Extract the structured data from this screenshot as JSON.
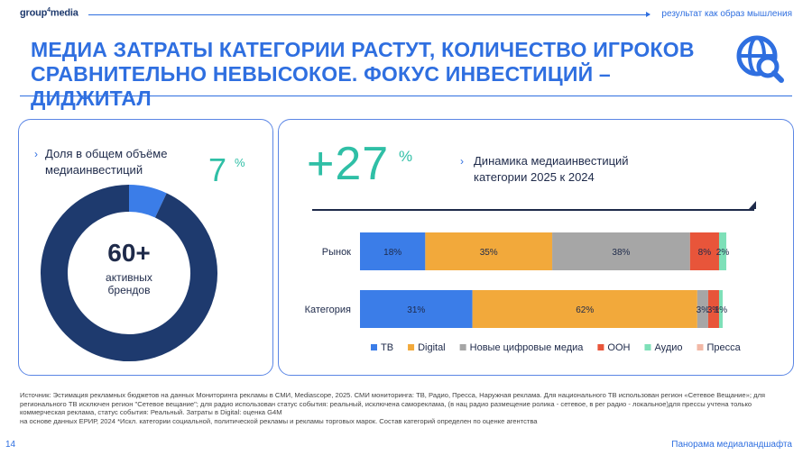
{
  "header": {
    "logo_main": "group",
    "logo_sup": "4",
    "logo_tail": "media",
    "tagline": "результат как образ мышления"
  },
  "title": "МЕДИА ЗАТРАТЫ КАТЕГОРИИ РАСТУТ, КОЛИЧЕСТВО ИГРОКОВ СРАВНИТЕЛЬНО НЕВЫСОКОЕ. ФОКУС ИНВЕСТИЦИЙ – ДИДЖИТАЛ",
  "title_icon": "globe-search-icon",
  "left_card": {
    "label": "Доля в общем объёме медиаинвестиций",
    "value": "7",
    "unit": "%",
    "center_number": "60+",
    "center_text_1": "активных",
    "center_text_2": "брендов"
  },
  "right_card": {
    "growth": "+27",
    "growth_unit": "%",
    "label_1": "Динамика медиаинвестиций",
    "label_2": "категории 2025 к 2024"
  },
  "colors": {
    "brand": "#2f6fe0",
    "navy": "#1e3a6e",
    "teal": "#2fbfa6",
    "tv": "#3b7de8",
    "digital": "#f2a93b",
    "new_digital": "#a6a6a6",
    "ooh": "#e8553a",
    "audio": "#7ee0b8",
    "press": "#f2b8a6"
  },
  "chart_data": [
    {
      "type": "pie",
      "labels": [
        "",
        ""
      ],
      "values": [
        7,
        93
      ],
      "colors": [
        "#3b7de8",
        "#1e3a6e"
      ]
    },
    {
      "type": "bar",
      "orientation": "horizontal",
      "stacked": true,
      "percent": true,
      "categories": [
        "Рынок",
        "Категория"
      ],
      "series": [
        {
          "name": "ТВ",
          "color": "#3b7de8",
          "values": [
            18,
            31
          ],
          "labels": [
            "18%",
            "31%"
          ]
        },
        {
          "name": "Digital",
          "color": "#f2a93b",
          "values": [
            35,
            62
          ],
          "labels": [
            "35%",
            "62%"
          ]
        },
        {
          "name": "Новые цифровые медиа",
          "color": "#a6a6a6",
          "values": [
            38,
            3
          ],
          "labels": [
            "38%",
            "3%"
          ]
        },
        {
          "name": "OOH",
          "color": "#e8553a",
          "values": [
            8,
            3
          ],
          "labels": [
            "8%",
            "3%"
          ]
        },
        {
          "name": "Аудио",
          "color": "#7ee0b8",
          "values": [
            2,
            1
          ],
          "labels": [
            "2%",
            "1%"
          ]
        },
        {
          "name": "Пресса",
          "color": "#f2b8a6",
          "values": [
            0,
            0
          ],
          "labels": [
            "",
            ""
          ]
        }
      ],
      "legend_position": "bottom"
    }
  ],
  "source": {
    "line1": "Источник: Эстимация рекламных бюджетов на данных Мониторинга рекламы в СМИ, Mediascope, 2025. СМИ мониторинга: ТВ, Радио, Пресса, Наружная реклама. Для национального ТВ использован регион «Сетевое Вещание»; для",
    "line2": "регионального ТВ исключен регион \"Сетевое вещание\"; для радио использован статус события: реальный, исключена самореклама, (в нац радио размещение ролика - сетевое, в рег радио - локальное)для прессы учтена только",
    "line3": "коммерческая реклама, статус события: Реальный. Затраты в Digital: оценка G4M",
    "line4": "на основе данных ЕРИР, 2024 *Искл. категории социальной, политической рекламы и рекламы торговых марок. Состав категорий определен по оценке агентства"
  },
  "footer": {
    "page": "14",
    "right": "Панорама медиаландшафта"
  }
}
